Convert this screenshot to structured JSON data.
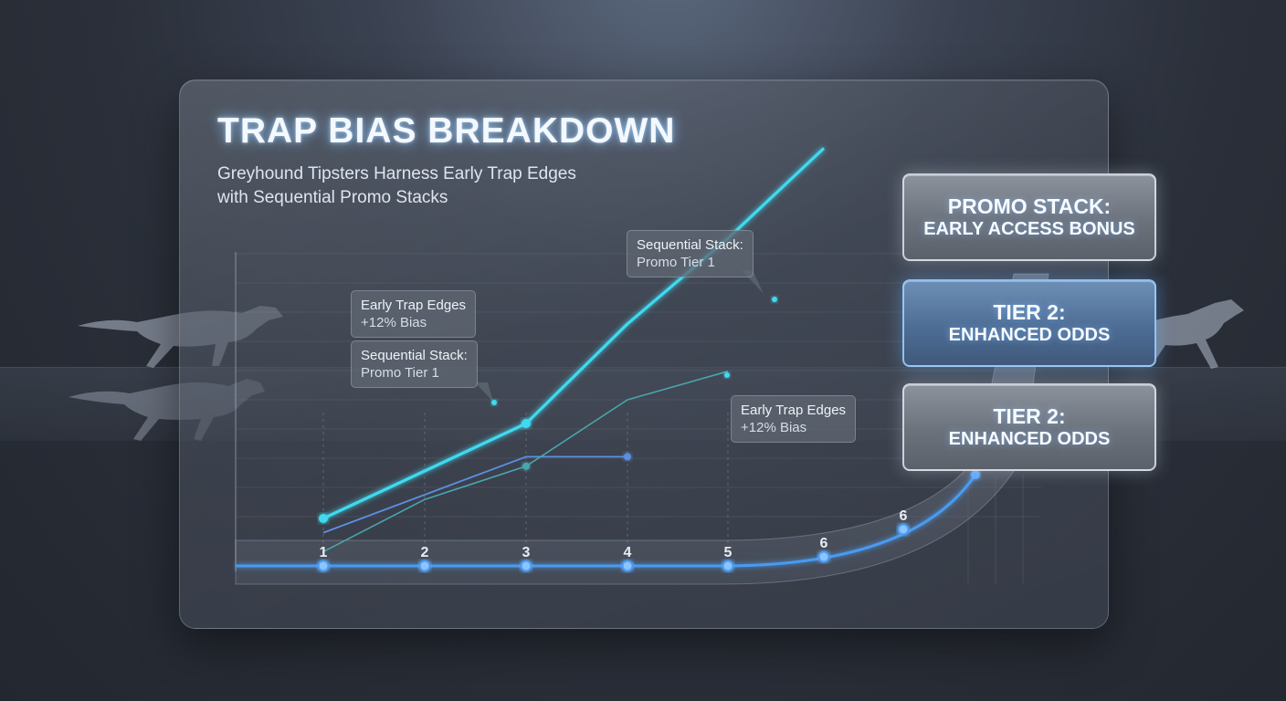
{
  "title": "TRAP BIAS BREAKDOWN",
  "subtitle_line1": "Greyhound Tipsters Harness Early Trap Edges",
  "subtitle_line2": "with Sequential Promo Stacks",
  "callouts": [
    {
      "line1": "Sequential Stack:",
      "line2": "Promo Tier 1"
    },
    {
      "line1": "Early Trap Edges",
      "line2": "+12% Bias"
    },
    {
      "line1": "Sequential Stack:",
      "line2": "Promo Tier 1"
    },
    {
      "line1": "Early Trap Edges",
      "line2": "+12% Bias"
    }
  ],
  "promo_boxes": [
    {
      "line1": "PROMO STACK:",
      "line2": "EARLY ACCESS BONUS"
    },
    {
      "line1": "TIER 2:",
      "line2": "ENHANCED ODDS"
    },
    {
      "line1": "TIER 2:",
      "line2": "ENHANCED ODDS"
    }
  ],
  "colors": {
    "main_line": "#3fd9f0",
    "blue_line": "#5a8fe0",
    "teal_line": "#4aa6ae",
    "track_line": "#4a9bf0"
  },
  "chart_data": {
    "type": "line",
    "title": "TRAP BIAS BREAKDOWN",
    "xlabel": "",
    "ylabel": "",
    "x": [
      "1",
      "2",
      "3",
      "4",
      "5",
      "6",
      "6"
    ],
    "grid": true,
    "series": [
      {
        "values": [
          1.0,
          2.0,
          3.0,
          5.1,
          6.9,
          8.8,
          null
        ]
      },
      {
        "values": [
          0.7,
          1.5,
          2.3,
          2.3,
          null,
          null,
          null
        ]
      },
      {
        "values": [
          0.3,
          1.4,
          2.1,
          3.5,
          4.1,
          null,
          null
        ]
      }
    ]
  }
}
